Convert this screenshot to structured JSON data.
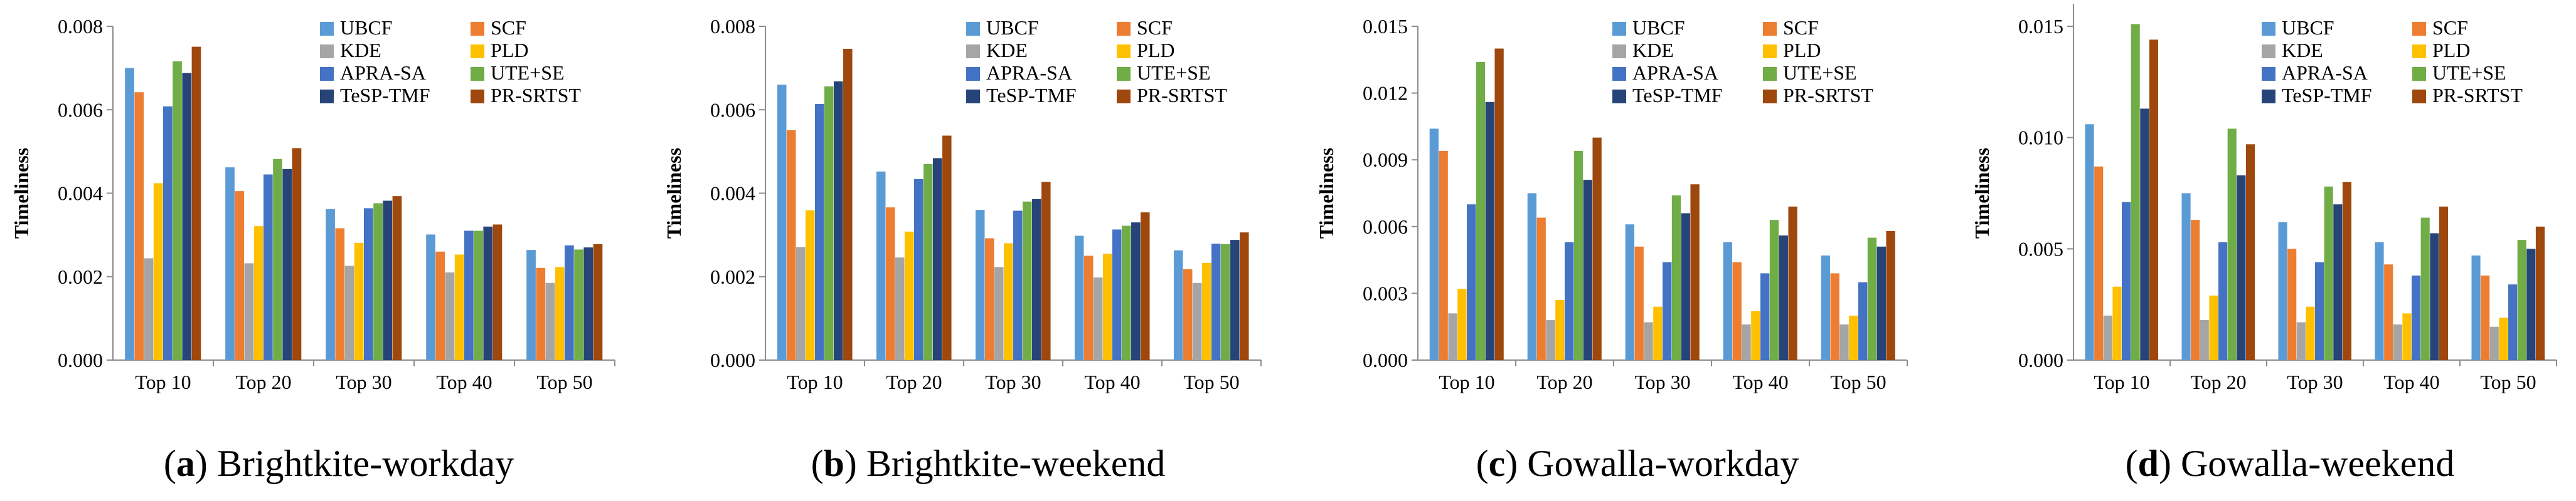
{
  "figure": {
    "series_names": [
      "UBCF",
      "SCF",
      "KDE",
      "PLD",
      "APRA-SA",
      "UTE+SE",
      "TeSP-TMF",
      "PR-SRTST"
    ],
    "series_colors": [
      "#5B9BD5",
      "#ED7D31",
      "#A5A5A5",
      "#FFC000",
      "#4472C4",
      "#70AD47",
      "#264478",
      "#9E480E"
    ]
  },
  "chart_data": [
    {
      "type": "bar",
      "panel_letter": "a",
      "caption": "Brightkite-workday",
      "ylabel": "Timeliness",
      "xlabel": "",
      "ylim": [
        0,
        0.008
      ],
      "yticks": [
        "0.000",
        "0.002",
        "0.004",
        "0.006",
        "0.008"
      ],
      "categories": [
        "Top 10",
        "Top 20",
        "Top 30",
        "Top 40",
        "Top 50"
      ],
      "legend": "top-right",
      "series": [
        {
          "name": "UBCF",
          "values": [
            0.007,
            0.00462,
            0.00362,
            0.00301,
            0.00264
          ]
        },
        {
          "name": "SCF",
          "values": [
            0.00642,
            0.00405,
            0.00316,
            0.0026,
            0.00221
          ]
        },
        {
          "name": "KDE",
          "values": [
            0.00244,
            0.00232,
            0.00226,
            0.0021,
            0.00185
          ]
        },
        {
          "name": "PLD",
          "values": [
            0.00424,
            0.00321,
            0.00281,
            0.00253,
            0.00223
          ]
        },
        {
          "name": "APRA-SA",
          "values": [
            0.00608,
            0.00445,
            0.00364,
            0.0031,
            0.00275
          ]
        },
        {
          "name": "UTE+SE",
          "values": [
            0.00716,
            0.00482,
            0.00376,
            0.0031,
            0.00265
          ]
        },
        {
          "name": "TeSP-TMF",
          "values": [
            0.00688,
            0.00458,
            0.00382,
            0.0032,
            0.0027
          ]
        },
        {
          "name": "PR-SRTST",
          "values": [
            0.00751,
            0.00508,
            0.00393,
            0.00325,
            0.00278
          ]
        }
      ]
    },
    {
      "type": "bar",
      "panel_letter": "b",
      "caption": "Brightkite-weekend",
      "ylabel": "Timeliness",
      "xlabel": "",
      "ylim": [
        0,
        0.008
      ],
      "yticks": [
        "0.000",
        "0.002",
        "0.004",
        "0.006",
        "0.008"
      ],
      "categories": [
        "Top 10",
        "Top 20",
        "Top 30",
        "Top 40",
        "Top 50"
      ],
      "legend": "top-right",
      "series": [
        {
          "name": "UBCF",
          "values": [
            0.0066,
            0.00452,
            0.0036,
            0.00298,
            0.00263
          ]
        },
        {
          "name": "SCF",
          "values": [
            0.00551,
            0.00366,
            0.00292,
            0.0025,
            0.00218
          ]
        },
        {
          "name": "KDE",
          "values": [
            0.00271,
            0.00246,
            0.00223,
            0.00198,
            0.00185
          ]
        },
        {
          "name": "PLD",
          "values": [
            0.00359,
            0.00308,
            0.0028,
            0.00255,
            0.00233
          ]
        },
        {
          "name": "APRA-SA",
          "values": [
            0.00614,
            0.00434,
            0.00358,
            0.00313,
            0.00279
          ]
        },
        {
          "name": "UTE+SE",
          "values": [
            0.00656,
            0.0047,
            0.0038,
            0.00322,
            0.00278
          ]
        },
        {
          "name": "TeSP-TMF",
          "values": [
            0.00668,
            0.00484,
            0.00386,
            0.0033,
            0.00288
          ]
        },
        {
          "name": "PR-SRTST",
          "values": [
            0.00746,
            0.00538,
            0.00427,
            0.00354,
            0.00306
          ]
        }
      ]
    },
    {
      "type": "bar",
      "panel_letter": "c",
      "caption": "Gowalla-workday",
      "ylabel": "Timeliness",
      "xlabel": "",
      "ylim": [
        0,
        0.015
      ],
      "yticks": [
        "0.000",
        "0.003",
        "0.006",
        "0.009",
        "0.012",
        "0.015"
      ],
      "categories": [
        "Top 10",
        "Top 20",
        "Top 30",
        "Top 40",
        "Top 50"
      ],
      "legend": "top-right",
      "series": [
        {
          "name": "UBCF",
          "values": [
            0.0104,
            0.0075,
            0.0061,
            0.0053,
            0.0047
          ]
        },
        {
          "name": "SCF",
          "values": [
            0.0094,
            0.0064,
            0.0051,
            0.0044,
            0.0039
          ]
        },
        {
          "name": "KDE",
          "values": [
            0.0021,
            0.0018,
            0.0017,
            0.0016,
            0.0016
          ]
        },
        {
          "name": "PLD",
          "values": [
            0.0032,
            0.0027,
            0.0024,
            0.0022,
            0.002
          ]
        },
        {
          "name": "APRA-SA",
          "values": [
            0.007,
            0.0053,
            0.0044,
            0.0039,
            0.0035
          ]
        },
        {
          "name": "UTE+SE",
          "values": [
            0.0134,
            0.0094,
            0.0074,
            0.0063,
            0.0055
          ]
        },
        {
          "name": "TeSP-TMF",
          "values": [
            0.0116,
            0.0081,
            0.0066,
            0.0056,
            0.0051
          ]
        },
        {
          "name": "PR-SRTST",
          "values": [
            0.014,
            0.01,
            0.0079,
            0.0069,
            0.0058
          ]
        }
      ]
    },
    {
      "type": "bar",
      "panel_letter": "d",
      "caption": "Gowalla-weekend",
      "ylabel": "Timeliness",
      "xlabel": "",
      "ylim": [
        0,
        0.016
      ],
      "yticks": [
        "0.000",
        "0.005",
        "0.010",
        "0.015"
      ],
      "categories": [
        "Top 10",
        "Top 20",
        "Top 30",
        "Top 40",
        "Top 50"
      ],
      "legend": "top-right",
      "series": [
        {
          "name": "UBCF",
          "values": [
            0.0106,
            0.0075,
            0.0062,
            0.0053,
            0.0047
          ]
        },
        {
          "name": "SCF",
          "values": [
            0.0087,
            0.0063,
            0.005,
            0.0043,
            0.0038
          ]
        },
        {
          "name": "KDE",
          "values": [
            0.002,
            0.0018,
            0.0017,
            0.0016,
            0.0015
          ]
        },
        {
          "name": "PLD",
          "values": [
            0.0033,
            0.0029,
            0.0024,
            0.0021,
            0.0019
          ]
        },
        {
          "name": "APRA-SA",
          "values": [
            0.0071,
            0.0053,
            0.0044,
            0.0038,
            0.0034
          ]
        },
        {
          "name": "UTE+SE",
          "values": [
            0.0151,
            0.0104,
            0.0078,
            0.0064,
            0.0054
          ]
        },
        {
          "name": "TeSP-TMF",
          "values": [
            0.0113,
            0.0083,
            0.007,
            0.0057,
            0.005
          ]
        },
        {
          "name": "PR-SRTST",
          "values": [
            0.0144,
            0.0097,
            0.008,
            0.0069,
            0.006
          ]
        }
      ]
    }
  ]
}
